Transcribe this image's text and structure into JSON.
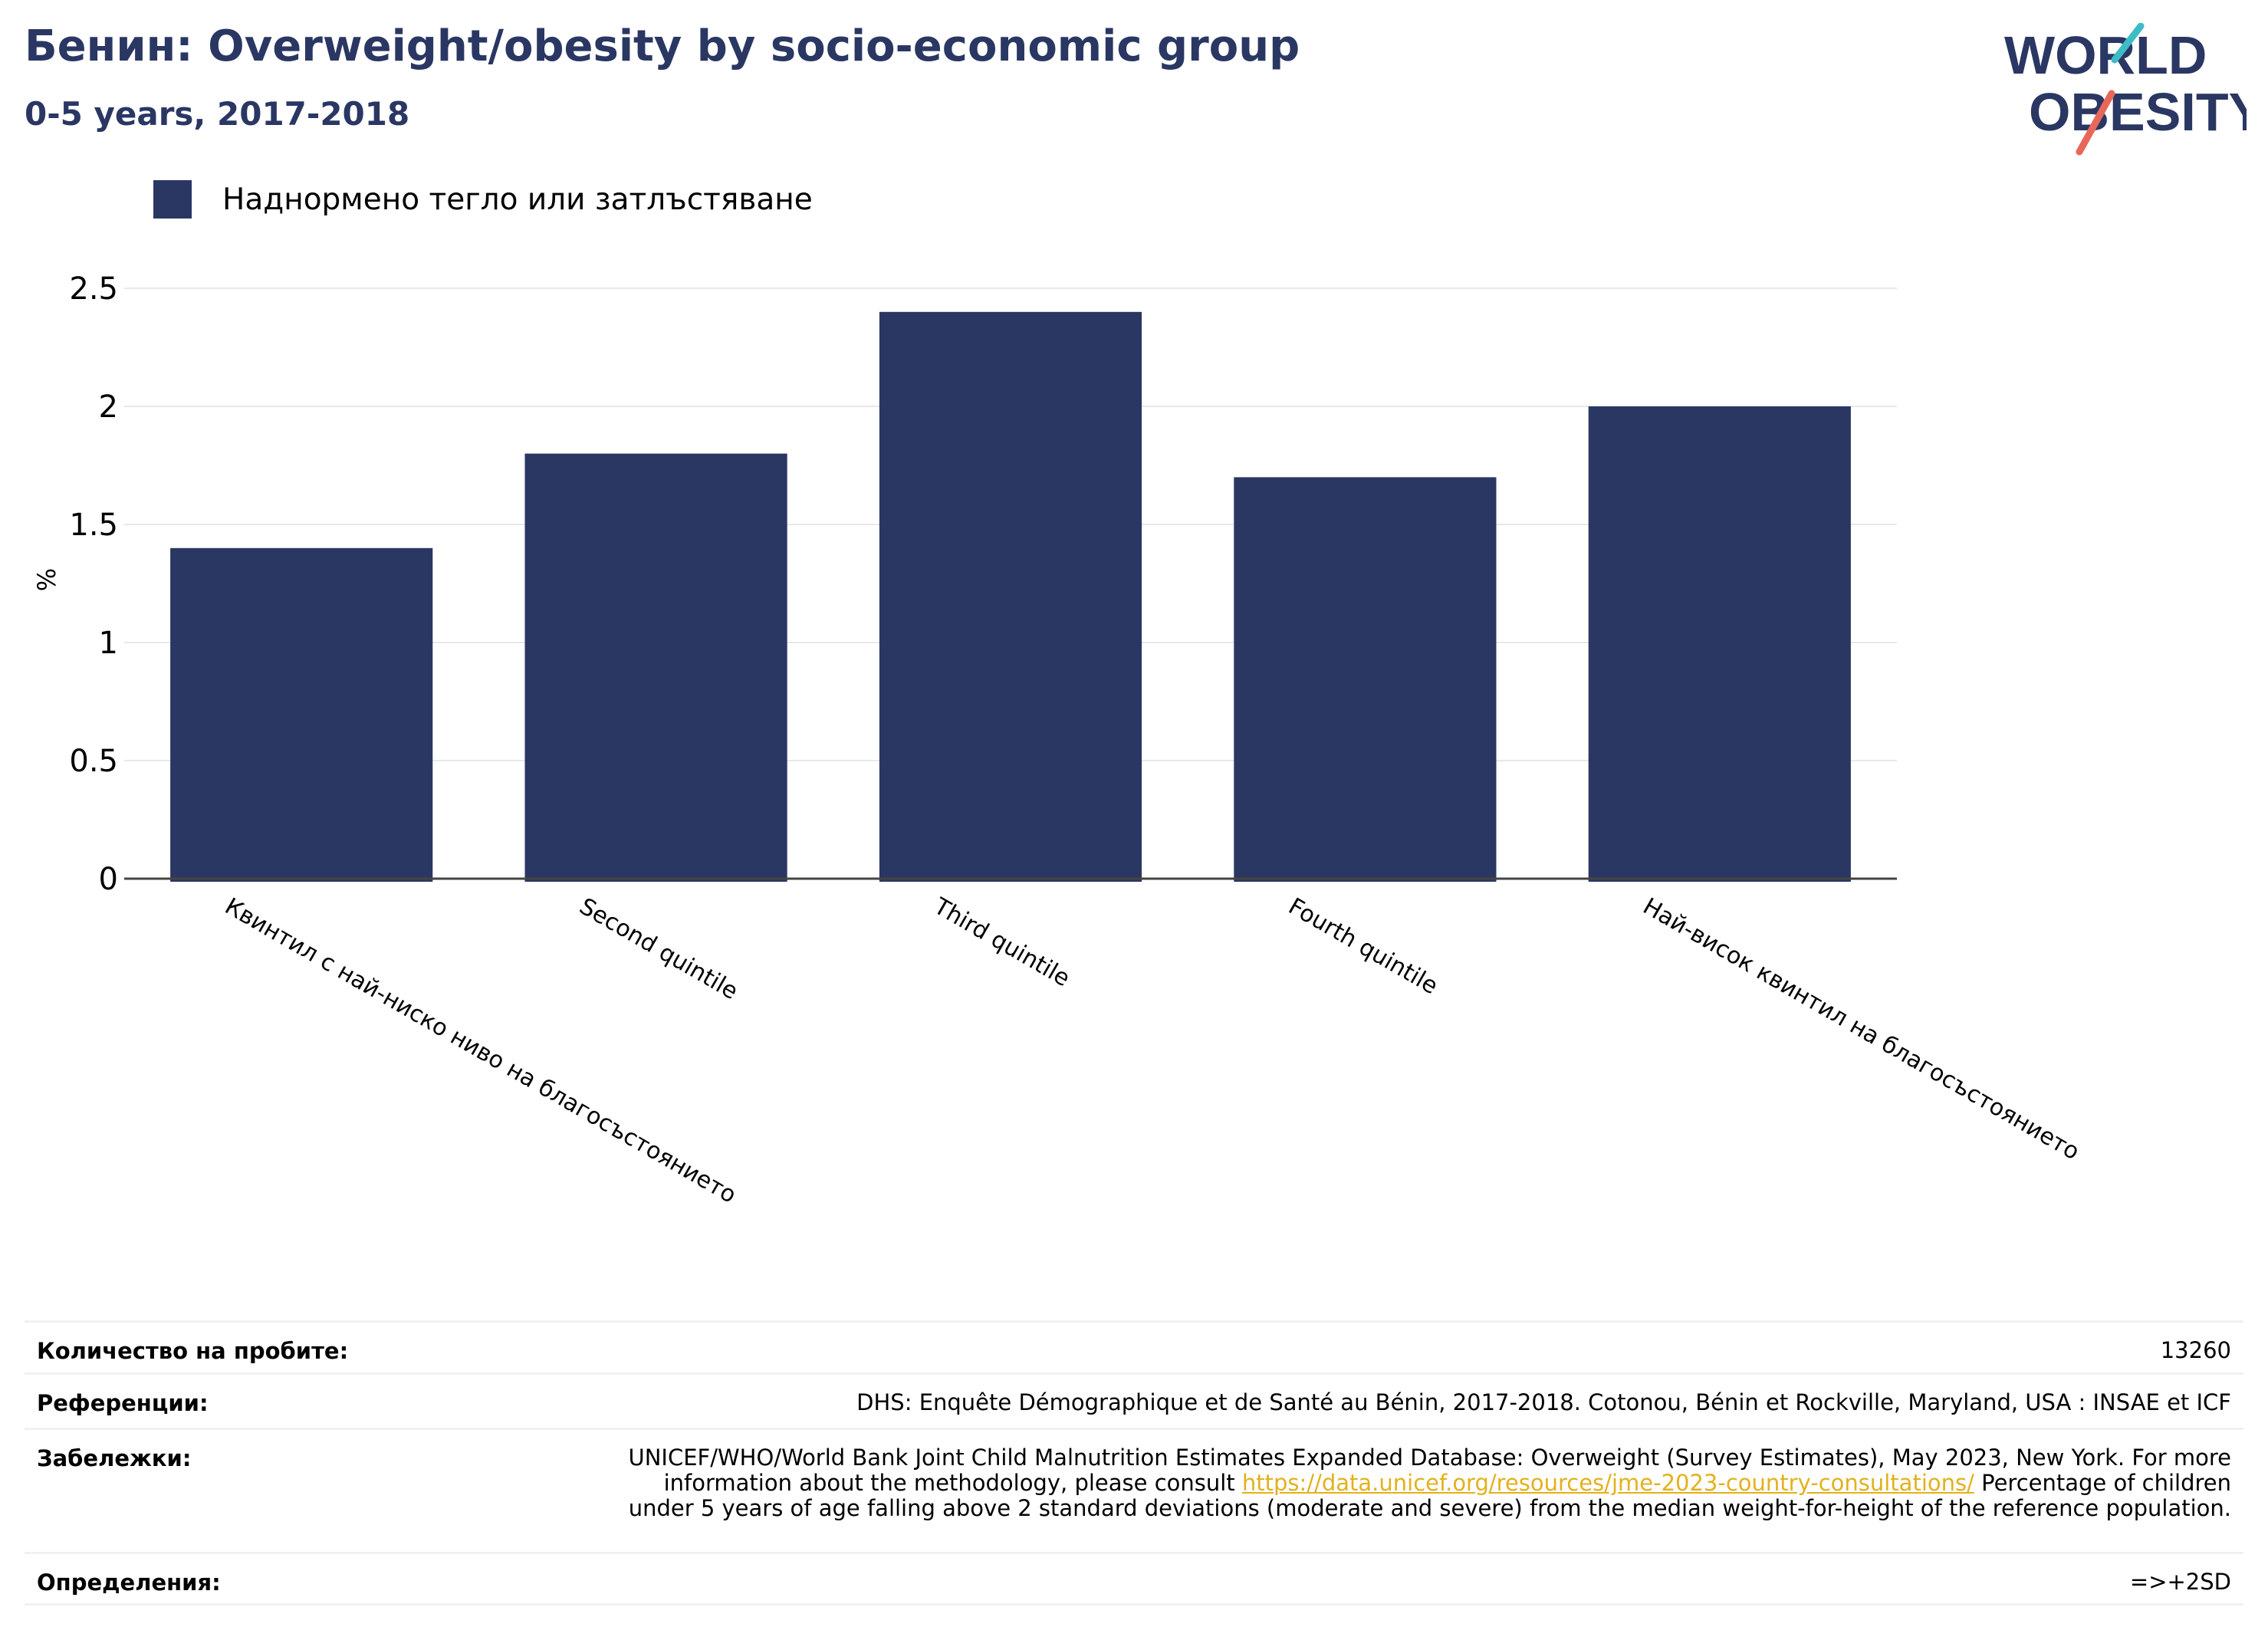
{
  "header": {
    "title": "Бенин: Overweight/obesity by socio-economic group",
    "subtitle": "0-5 years, 2017-2018"
  },
  "logo": {
    "line1": "WORLD",
    "line2": "OBESITY"
  },
  "colors": {
    "bar": "#2a3763",
    "title": "#2a3763",
    "grid": "#e6e8ec",
    "link": "#e3b11d",
    "logo_teal": "#3dbcc6",
    "logo_red": "#e8675a"
  },
  "chart_data": {
    "type": "bar",
    "categories": [
      "Квинтил с най-ниско ниво на благосъстоянието",
      "Second quintile",
      "Third quintile",
      "Fourth quintile",
      "Най-висок квинтил на благосъстоянието"
    ],
    "series": [
      {
        "name": "Наднормено тегло или затлъстяване",
        "values": [
          1.4,
          1.8,
          2.4,
          1.7,
          2.0
        ]
      }
    ],
    "ylabel": "%",
    "ylim": [
      0,
      2.5
    ],
    "yticks": [
      "0",
      "0.5",
      "1",
      "1.5",
      "2",
      "2.5"
    ],
    "grid": true,
    "legend": "top-left"
  },
  "footer": {
    "sample_label": "Количество на пробите:",
    "sample_value": "13260",
    "references_label": "Референции:",
    "references_value": "DHS: Enquête Démographique et de Santé au Bénin, 2017-2018. Cotonou, Bénin et Rockville, Maryland, USA : INSAE et ICF",
    "notes_label": "Забележки:",
    "notes_text_1": "UNICEF/WHO/World Bank Joint Child Malnutrition Estimates Expanded Database: Overweight (Survey Estimates), May 2023, New York. For more information about the methodology, please consult",
    "notes_link": "https://data.unicef.org/resources/jme-2023-country-consultations/",
    "notes_text_2": "Percentage of children under 5 years of age falling above 2 standard deviations (moderate and severe) from the median weight-for-height of the reference population.",
    "definitions_label": "Определения:",
    "definitions_value": "=>+2SD"
  }
}
